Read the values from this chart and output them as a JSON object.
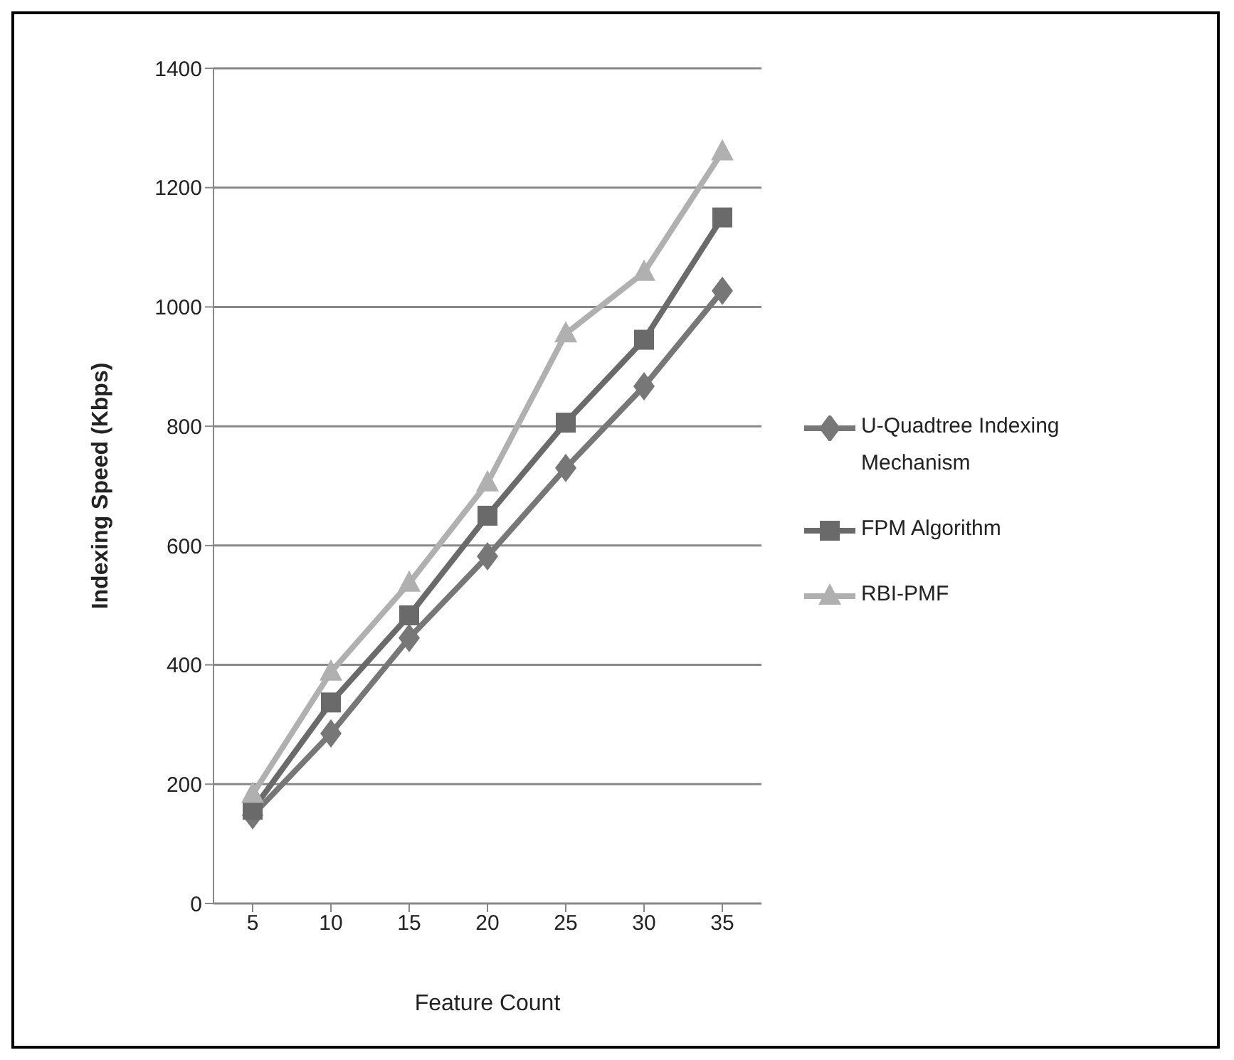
{
  "chart_data": {
    "type": "line",
    "xlabel": "Feature Count",
    "ylabel": "Indexing Speed  (Kbps)",
    "categories": [
      "5",
      "10",
      "15",
      "20",
      "25",
      "30",
      "35"
    ],
    "ylim": [
      0,
      1400
    ],
    "yticks": [
      0,
      200,
      400,
      600,
      800,
      1000,
      1200,
      1400
    ],
    "grid": "y",
    "legend": "right",
    "line_style": "solid",
    "series": [
      {
        "name": "U-Quadtree Indexing Mechanism",
        "color": "#777777",
        "marker": "diamond",
        "values": [
          148,
          285,
          445,
          582,
          730,
          867,
          1027
        ]
      },
      {
        "name": "FPM Algorithm",
        "color": "#6a6a6a",
        "marker": "square",
        "values": [
          157,
          337,
          483,
          650,
          806,
          945,
          1150
        ]
      },
      {
        "name": "RBI-PMF",
        "color": "#b0b0b0",
        "marker": "triangle",
        "values": [
          183,
          388,
          537,
          705,
          955,
          1058,
          1260
        ]
      }
    ]
  }
}
